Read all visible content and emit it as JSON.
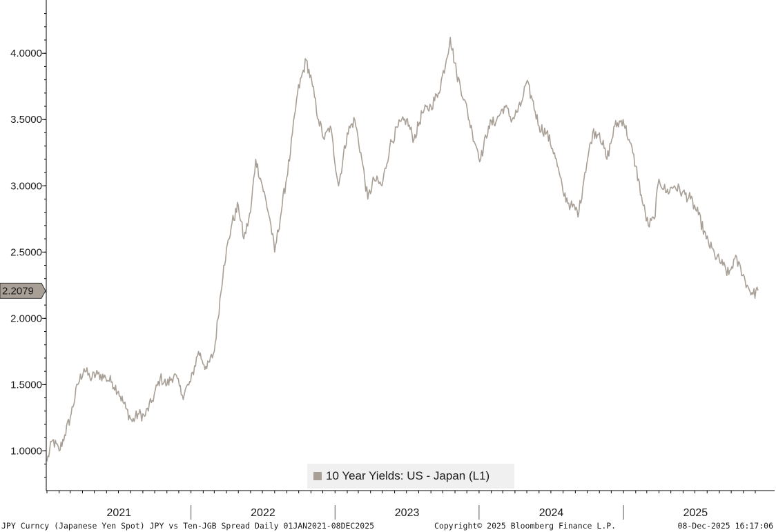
{
  "chart_data": {
    "type": "line",
    "title": "",
    "ylim": [
      0.7,
      4.35
    ],
    "y_ticks": [
      "1.0000",
      "1.5000",
      "2.0000",
      "2.5000",
      "3.0000",
      "3.5000",
      "4.0000"
    ],
    "y_tick_values": [
      1.0,
      1.5,
      2.0,
      2.5,
      3.0,
      3.5,
      4.0
    ],
    "x_range": [
      "2021-01-01",
      "2025-12-08"
    ],
    "x_year_labels": [
      "2021",
      "2022",
      "2023",
      "2024",
      "2025"
    ],
    "last_value_label": "2.2079",
    "last_value": 2.2079,
    "grid": false,
    "legend_position": "bottom-center",
    "series": [
      {
        "name": "10 Year Yields: US - Japan (L1)",
        "color": "#a89f96",
        "points": [
          [
            "2021-01-01",
            0.92
          ],
          [
            "2021-01-15",
            1.08
          ],
          [
            "2021-02-01",
            1.0
          ],
          [
            "2021-02-15",
            1.12
          ],
          [
            "2021-03-01",
            1.25
          ],
          [
            "2021-03-20",
            1.5
          ],
          [
            "2021-04-05",
            1.62
          ],
          [
            "2021-04-20",
            1.55
          ],
          [
            "2021-05-10",
            1.58
          ],
          [
            "2021-05-30",
            1.55
          ],
          [
            "2021-06-15",
            1.52
          ],
          [
            "2021-07-01",
            1.45
          ],
          [
            "2021-07-20",
            1.32
          ],
          [
            "2021-08-05",
            1.22
          ],
          [
            "2021-08-20",
            1.28
          ],
          [
            "2021-09-05",
            1.26
          ],
          [
            "2021-09-25",
            1.38
          ],
          [
            "2021-10-15",
            1.55
          ],
          [
            "2021-11-01",
            1.5
          ],
          [
            "2021-11-20",
            1.58
          ],
          [
            "2021-12-10",
            1.42
          ],
          [
            "2021-12-31",
            1.52
          ],
          [
            "2022-01-20",
            1.75
          ],
          [
            "2022-02-10",
            1.62
          ],
          [
            "2022-03-01",
            1.75
          ],
          [
            "2022-03-25",
            2.4
          ],
          [
            "2022-04-15",
            2.72
          ],
          [
            "2022-05-01",
            2.85
          ],
          [
            "2022-05-15",
            2.6
          ],
          [
            "2022-06-01",
            2.8
          ],
          [
            "2022-06-14",
            3.2
          ],
          [
            "2022-07-01",
            3.0
          ],
          [
            "2022-07-20",
            2.75
          ],
          [
            "2022-08-01",
            2.5
          ],
          [
            "2022-08-20",
            2.85
          ],
          [
            "2022-09-10",
            3.25
          ],
          [
            "2022-09-28",
            3.7
          ],
          [
            "2022-10-20",
            3.95
          ],
          [
            "2022-11-05",
            3.75
          ],
          [
            "2022-11-20",
            3.5
          ],
          [
            "2022-12-05",
            3.35
          ],
          [
            "2022-12-20",
            3.45
          ],
          [
            "2023-01-10",
            3.0
          ],
          [
            "2023-02-01",
            3.4
          ],
          [
            "2023-02-20",
            3.5
          ],
          [
            "2023-03-10",
            3.2
          ],
          [
            "2023-03-25",
            2.9
          ],
          [
            "2023-04-10",
            3.05
          ],
          [
            "2023-04-30",
            3.0
          ],
          [
            "2023-05-20",
            3.3
          ],
          [
            "2023-06-10",
            3.45
          ],
          [
            "2023-07-01",
            3.5
          ],
          [
            "2023-07-20",
            3.35
          ],
          [
            "2023-08-10",
            3.55
          ],
          [
            "2023-09-01",
            3.6
          ],
          [
            "2023-09-20",
            3.7
          ],
          [
            "2023-10-10",
            3.95
          ],
          [
            "2023-10-20",
            4.12
          ],
          [
            "2023-11-05",
            3.85
          ],
          [
            "2023-11-25",
            3.65
          ],
          [
            "2023-12-15",
            3.4
          ],
          [
            "2024-01-05",
            3.2
          ],
          [
            "2024-01-25",
            3.45
          ],
          [
            "2024-02-15",
            3.5
          ],
          [
            "2024-03-05",
            3.6
          ],
          [
            "2024-03-25",
            3.5
          ],
          [
            "2024-04-15",
            3.6
          ],
          [
            "2024-04-30",
            3.78
          ],
          [
            "2024-05-15",
            3.65
          ],
          [
            "2024-06-01",
            3.45
          ],
          [
            "2024-06-20",
            3.4
          ],
          [
            "2024-07-10",
            3.25
          ],
          [
            "2024-08-01",
            2.95
          ],
          [
            "2024-08-20",
            2.85
          ],
          [
            "2024-09-10",
            2.8
          ],
          [
            "2024-09-25",
            3.1
          ],
          [
            "2024-10-15",
            3.4
          ],
          [
            "2024-11-01",
            3.4
          ],
          [
            "2024-11-20",
            3.2
          ],
          [
            "2024-12-10",
            3.45
          ],
          [
            "2024-12-31",
            3.5
          ],
          [
            "2025-01-15",
            3.35
          ],
          [
            "2025-02-01",
            3.15
          ],
          [
            "2025-02-20",
            2.85
          ],
          [
            "2025-03-05",
            2.7
          ],
          [
            "2025-03-20",
            2.75
          ],
          [
            "2025-04-01",
            3.05
          ],
          [
            "2025-04-20",
            2.95
          ],
          [
            "2025-05-10",
            3.0
          ],
          [
            "2025-05-30",
            2.95
          ],
          [
            "2025-06-20",
            2.9
          ],
          [
            "2025-07-10",
            2.78
          ],
          [
            "2025-07-30",
            2.6
          ],
          [
            "2025-08-20",
            2.48
          ],
          [
            "2025-09-10",
            2.4
          ],
          [
            "2025-09-25",
            2.33
          ],
          [
            "2025-10-10",
            2.45
          ],
          [
            "2025-10-25",
            2.38
          ],
          [
            "2025-11-10",
            2.25
          ],
          [
            "2025-11-25",
            2.18
          ],
          [
            "2025-12-08",
            2.21
          ]
        ]
      }
    ]
  },
  "footer": {
    "left": "JPY Curncy (Japanese Yen Spot) JPY vs Ten-JGB Spread Daily 01JAN2021-08DEC2025",
    "center": "Copyright© 2025 Bloomberg Finance L.P.",
    "right": "08-Dec-2025 16:17:06"
  }
}
